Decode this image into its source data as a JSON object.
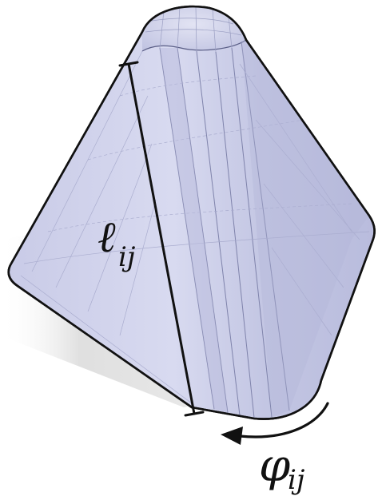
{
  "figure": {
    "description_free": true,
    "length_label": {
      "symbol": "ℓ",
      "subscript": "ij"
    },
    "angle_label": {
      "symbol": "φ",
      "subscript": "ij"
    },
    "colors": {
      "surface_fill": "#c8cbe6",
      "surface_shade": "#b4b7da",
      "outline": "#111111",
      "mesh_line": "#8e92b8",
      "shadow": "#d9d9d9"
    }
  }
}
